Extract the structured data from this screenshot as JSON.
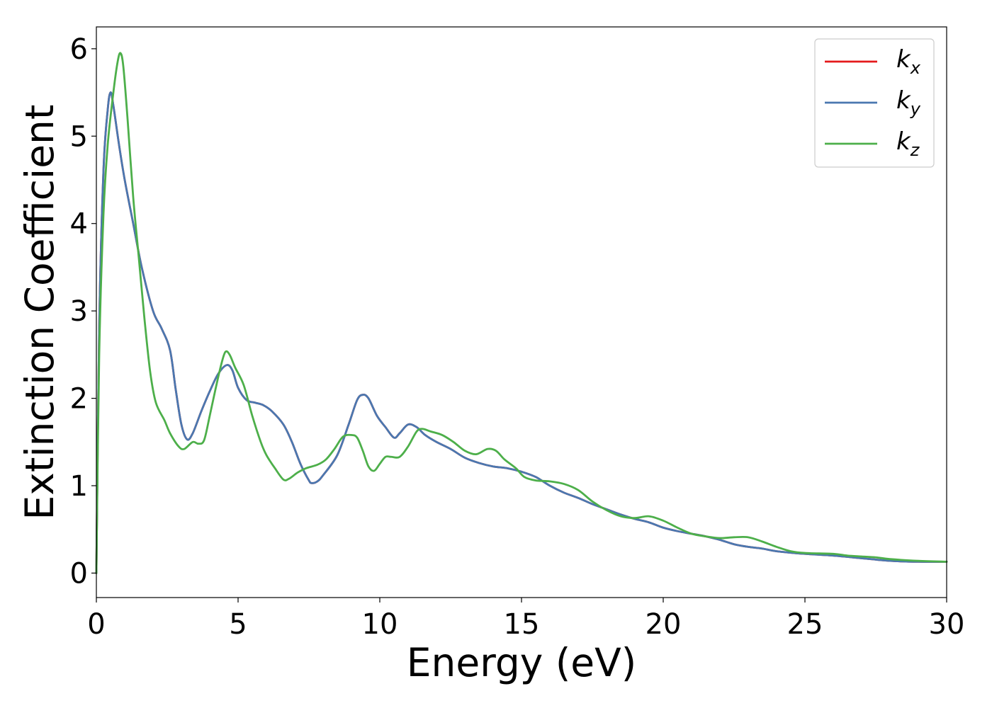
{
  "chart_data": {
    "type": "line",
    "title": "",
    "xlabel": "Energy (eV)",
    "ylabel": "Extinction Coefficient",
    "xlim": [
      0,
      30
    ],
    "ylim": [
      -0.28,
      6.25
    ],
    "xticks": [
      0,
      5,
      10,
      15,
      20,
      25,
      30
    ],
    "yticks": [
      0,
      1,
      2,
      3,
      4,
      5,
      6
    ],
    "xtick_labels": [
      "0",
      "5",
      "10",
      "15",
      "20",
      "25",
      "30"
    ],
    "ytick_labels": [
      "0",
      "1",
      "2",
      "3",
      "4",
      "5",
      "6"
    ],
    "grid": false,
    "legend_position": "top-right",
    "series": [
      {
        "name": "k_x",
        "label_base": "k",
        "label_sub": "x",
        "color": "#e41a1c",
        "points": [
          [
            0,
            0
          ],
          [
            0.1,
            2.8
          ],
          [
            0.25,
            4.6
          ],
          [
            0.4,
            5.3
          ],
          [
            0.5,
            5.5
          ],
          [
            0.6,
            5.35
          ],
          [
            0.8,
            4.9
          ],
          [
            1.0,
            4.5
          ],
          [
            1.3,
            4.0
          ],
          [
            1.6,
            3.5
          ],
          [
            2.0,
            3.0
          ],
          [
            2.3,
            2.8
          ],
          [
            2.6,
            2.55
          ],
          [
            2.8,
            2.1
          ],
          [
            3.0,
            1.7
          ],
          [
            3.2,
            1.53
          ],
          [
            3.4,
            1.6
          ],
          [
            3.7,
            1.85
          ],
          [
            4.0,
            2.08
          ],
          [
            4.3,
            2.28
          ],
          [
            4.6,
            2.38
          ],
          [
            4.8,
            2.32
          ],
          [
            5.0,
            2.12
          ],
          [
            5.3,
            1.98
          ],
          [
            5.6,
            1.95
          ],
          [
            5.9,
            1.92
          ],
          [
            6.2,
            1.85
          ],
          [
            6.6,
            1.7
          ],
          [
            6.9,
            1.5
          ],
          [
            7.2,
            1.25
          ],
          [
            7.5,
            1.06
          ],
          [
            7.6,
            1.03
          ],
          [
            7.8,
            1.05
          ],
          [
            8.0,
            1.12
          ],
          [
            8.5,
            1.35
          ],
          [
            8.9,
            1.7
          ],
          [
            9.2,
            1.98
          ],
          [
            9.4,
            2.04
          ],
          [
            9.6,
            2.0
          ],
          [
            9.9,
            1.8
          ],
          [
            10.2,
            1.67
          ],
          [
            10.5,
            1.55
          ],
          [
            10.7,
            1.6
          ],
          [
            11.0,
            1.7
          ],
          [
            11.3,
            1.67
          ],
          [
            11.6,
            1.58
          ],
          [
            12.0,
            1.5
          ],
          [
            12.5,
            1.42
          ],
          [
            13.0,
            1.32
          ],
          [
            13.5,
            1.26
          ],
          [
            14.0,
            1.22
          ],
          [
            14.5,
            1.2
          ],
          [
            15.0,
            1.16
          ],
          [
            15.5,
            1.1
          ],
          [
            16.0,
            1.0
          ],
          [
            16.5,
            0.92
          ],
          [
            17.0,
            0.86
          ],
          [
            17.5,
            0.79
          ],
          [
            18.0,
            0.73
          ],
          [
            18.5,
            0.67
          ],
          [
            19.0,
            0.62
          ],
          [
            19.5,
            0.58
          ],
          [
            20.0,
            0.52
          ],
          [
            20.5,
            0.48
          ],
          [
            21.0,
            0.45
          ],
          [
            21.5,
            0.42
          ],
          [
            22.0,
            0.38
          ],
          [
            22.5,
            0.33
          ],
          [
            23.0,
            0.3
          ],
          [
            23.5,
            0.28
          ],
          [
            24.0,
            0.25
          ],
          [
            25.0,
            0.22
          ],
          [
            26.0,
            0.2
          ],
          [
            27.0,
            0.17
          ],
          [
            28.0,
            0.14
          ],
          [
            29.0,
            0.13
          ],
          [
            30.0,
            0.13
          ]
        ]
      },
      {
        "name": "k_y",
        "label_base": "k",
        "label_sub": "y",
        "color": "#4a78b0",
        "points": [
          [
            0,
            0
          ],
          [
            0.1,
            2.8
          ],
          [
            0.25,
            4.6
          ],
          [
            0.4,
            5.3
          ],
          [
            0.5,
            5.5
          ],
          [
            0.6,
            5.35
          ],
          [
            0.8,
            4.9
          ],
          [
            1.0,
            4.5
          ],
          [
            1.3,
            4.0
          ],
          [
            1.6,
            3.5
          ],
          [
            2.0,
            3.0
          ],
          [
            2.3,
            2.8
          ],
          [
            2.6,
            2.55
          ],
          [
            2.8,
            2.1
          ],
          [
            3.0,
            1.7
          ],
          [
            3.2,
            1.53
          ],
          [
            3.4,
            1.6
          ],
          [
            3.7,
            1.85
          ],
          [
            4.0,
            2.08
          ],
          [
            4.3,
            2.28
          ],
          [
            4.6,
            2.38
          ],
          [
            4.8,
            2.32
          ],
          [
            5.0,
            2.12
          ],
          [
            5.3,
            1.98
          ],
          [
            5.6,
            1.95
          ],
          [
            5.9,
            1.92
          ],
          [
            6.2,
            1.85
          ],
          [
            6.6,
            1.7
          ],
          [
            6.9,
            1.5
          ],
          [
            7.2,
            1.25
          ],
          [
            7.5,
            1.06
          ],
          [
            7.6,
            1.03
          ],
          [
            7.8,
            1.05
          ],
          [
            8.0,
            1.12
          ],
          [
            8.5,
            1.35
          ],
          [
            8.9,
            1.7
          ],
          [
            9.2,
            1.98
          ],
          [
            9.4,
            2.04
          ],
          [
            9.6,
            2.0
          ],
          [
            9.9,
            1.8
          ],
          [
            10.2,
            1.67
          ],
          [
            10.5,
            1.55
          ],
          [
            10.7,
            1.6
          ],
          [
            11.0,
            1.7
          ],
          [
            11.3,
            1.67
          ],
          [
            11.6,
            1.58
          ],
          [
            12.0,
            1.5
          ],
          [
            12.5,
            1.42
          ],
          [
            13.0,
            1.32
          ],
          [
            13.5,
            1.26
          ],
          [
            14.0,
            1.22
          ],
          [
            14.5,
            1.2
          ],
          [
            15.0,
            1.16
          ],
          [
            15.5,
            1.1
          ],
          [
            16.0,
            1.0
          ],
          [
            16.5,
            0.92
          ],
          [
            17.0,
            0.86
          ],
          [
            17.5,
            0.79
          ],
          [
            18.0,
            0.73
          ],
          [
            18.5,
            0.67
          ],
          [
            19.0,
            0.62
          ],
          [
            19.5,
            0.58
          ],
          [
            20.0,
            0.52
          ],
          [
            20.5,
            0.48
          ],
          [
            21.0,
            0.45
          ],
          [
            21.5,
            0.42
          ],
          [
            22.0,
            0.38
          ],
          [
            22.5,
            0.33
          ],
          [
            23.0,
            0.3
          ],
          [
            23.5,
            0.28
          ],
          [
            24.0,
            0.25
          ],
          [
            25.0,
            0.22
          ],
          [
            26.0,
            0.2
          ],
          [
            27.0,
            0.17
          ],
          [
            28.0,
            0.14
          ],
          [
            29.0,
            0.13
          ],
          [
            30.0,
            0.13
          ]
        ]
      },
      {
        "name": "k_z",
        "label_base": "k",
        "label_sub": "z",
        "color": "#4daf4a",
        "points": [
          [
            0,
            0
          ],
          [
            0.1,
            2.5
          ],
          [
            0.25,
            4.1
          ],
          [
            0.4,
            4.9
          ],
          [
            0.6,
            5.5
          ],
          [
            0.75,
            5.85
          ],
          [
            0.85,
            5.95
          ],
          [
            0.95,
            5.8
          ],
          [
            1.1,
            5.2
          ],
          [
            1.3,
            4.3
          ],
          [
            1.5,
            3.6
          ],
          [
            1.7,
            2.9
          ],
          [
            1.9,
            2.3
          ],
          [
            2.1,
            1.95
          ],
          [
            2.4,
            1.75
          ],
          [
            2.6,
            1.6
          ],
          [
            2.9,
            1.45
          ],
          [
            3.1,
            1.42
          ],
          [
            3.4,
            1.5
          ],
          [
            3.6,
            1.48
          ],
          [
            3.8,
            1.52
          ],
          [
            4.0,
            1.8
          ],
          [
            4.2,
            2.1
          ],
          [
            4.4,
            2.38
          ],
          [
            4.55,
            2.53
          ],
          [
            4.7,
            2.5
          ],
          [
            4.9,
            2.35
          ],
          [
            5.2,
            2.15
          ],
          [
            5.5,
            1.8
          ],
          [
            5.8,
            1.5
          ],
          [
            6.0,
            1.35
          ],
          [
            6.3,
            1.2
          ],
          [
            6.6,
            1.07
          ],
          [
            6.8,
            1.08
          ],
          [
            7.1,
            1.15
          ],
          [
            7.4,
            1.2
          ],
          [
            7.8,
            1.24
          ],
          [
            8.1,
            1.3
          ],
          [
            8.4,
            1.42
          ],
          [
            8.7,
            1.56
          ],
          [
            9.0,
            1.58
          ],
          [
            9.2,
            1.55
          ],
          [
            9.4,
            1.4
          ],
          [
            9.6,
            1.22
          ],
          [
            9.8,
            1.17
          ],
          [
            10.0,
            1.25
          ],
          [
            10.2,
            1.33
          ],
          [
            10.4,
            1.33
          ],
          [
            10.7,
            1.33
          ],
          [
            11.0,
            1.45
          ],
          [
            11.3,
            1.62
          ],
          [
            11.5,
            1.65
          ],
          [
            11.8,
            1.62
          ],
          [
            12.2,
            1.58
          ],
          [
            12.6,
            1.5
          ],
          [
            13.0,
            1.4
          ],
          [
            13.4,
            1.36
          ],
          [
            13.8,
            1.42
          ],
          [
            14.1,
            1.4
          ],
          [
            14.4,
            1.3
          ],
          [
            14.8,
            1.2
          ],
          [
            15.1,
            1.1
          ],
          [
            15.5,
            1.06
          ],
          [
            16.0,
            1.05
          ],
          [
            16.5,
            1.02
          ],
          [
            17.0,
            0.95
          ],
          [
            17.5,
            0.82
          ],
          [
            18.0,
            0.72
          ],
          [
            18.5,
            0.65
          ],
          [
            19.0,
            0.63
          ],
          [
            19.5,
            0.65
          ],
          [
            20.0,
            0.6
          ],
          [
            20.5,
            0.52
          ],
          [
            21.0,
            0.45
          ],
          [
            21.5,
            0.42
          ],
          [
            22.0,
            0.4
          ],
          [
            22.5,
            0.41
          ],
          [
            23.0,
            0.41
          ],
          [
            23.5,
            0.36
          ],
          [
            24.0,
            0.3
          ],
          [
            24.5,
            0.25
          ],
          [
            25.0,
            0.23
          ],
          [
            26.0,
            0.22
          ],
          [
            26.5,
            0.2
          ],
          [
            27.0,
            0.19
          ],
          [
            27.5,
            0.18
          ],
          [
            28.0,
            0.16
          ],
          [
            29.0,
            0.14
          ],
          [
            30.0,
            0.13
          ]
        ]
      }
    ]
  }
}
